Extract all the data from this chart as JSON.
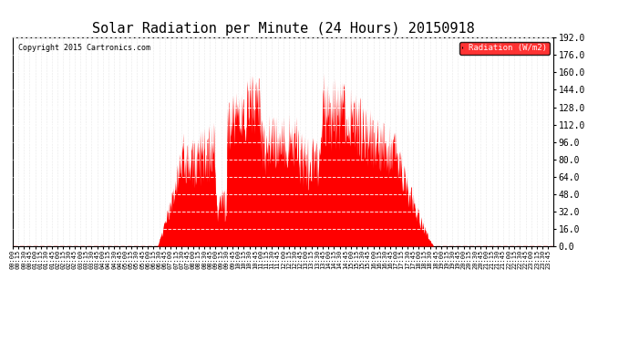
{
  "title": "Solar Radiation per Minute (24 Hours) 20150918",
  "copyright": "Copyright 2015 Cartronics.com",
  "legend_label": "Radiation (W/m2)",
  "ylim": [
    0.0,
    192.0
  ],
  "yticks": [
    0.0,
    16.0,
    32.0,
    48.0,
    64.0,
    80.0,
    96.0,
    112.0,
    128.0,
    144.0,
    160.0,
    176.0,
    192.0
  ],
  "bar_color": "#FF0000",
  "background_color": "#FFFFFF",
  "hgrid_color": "#FFFFFF",
  "vgrid_color": "#C8C8C8",
  "title_fontsize": 11,
  "legend_bg": "#FF0000",
  "legend_text_color": "#FFFFFF",
  "sunrise": 385,
  "sunset": 1120,
  "solar_noon": 750
}
